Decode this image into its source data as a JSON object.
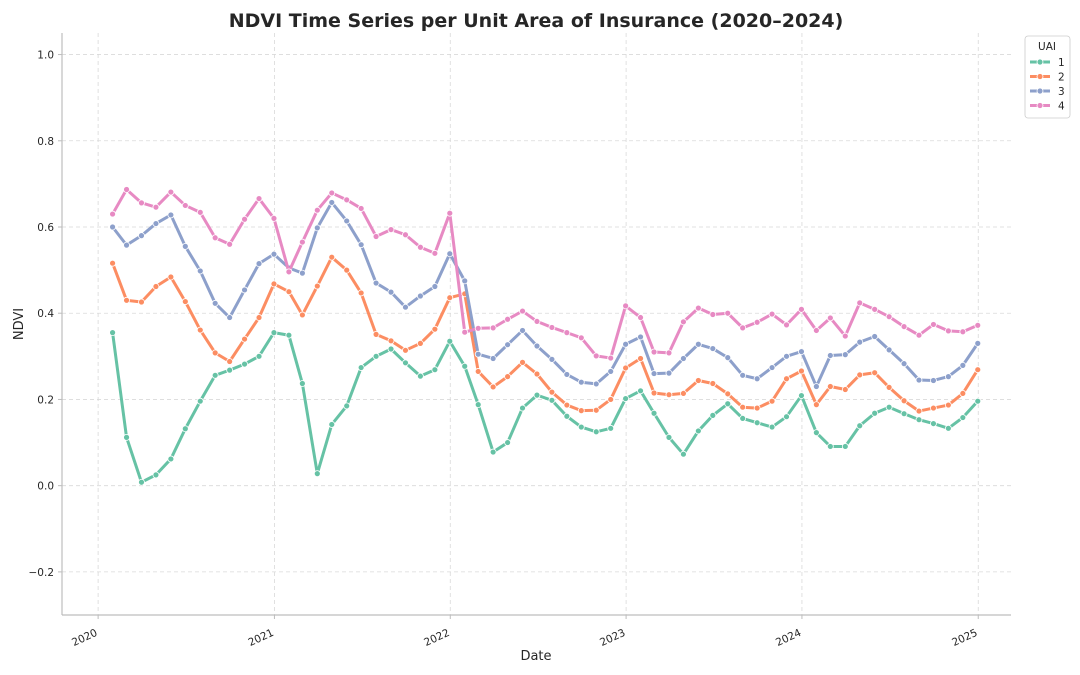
{
  "chart_data": {
    "type": "line",
    "title": "NDVI Time Series per Unit Area of Insurance (2020–2024)",
    "xlabel": "Date",
    "ylabel": "NDVI",
    "xlim": [
      "2019-10-18",
      "2025-03-10"
    ],
    "ylim": [
      -0.3,
      1.05
    ],
    "xticks": [
      "2020-01-01",
      "2021-01-01",
      "2022-01-01",
      "2023-01-01",
      "2024-01-01",
      "2025-01-01"
    ],
    "xtick_labels": [
      "2020",
      "2021",
      "2022",
      "2023",
      "2024",
      "2025"
    ],
    "yticks": [
      -0.2,
      0.0,
      0.2,
      0.4,
      0.6,
      0.8,
      1.0
    ],
    "ytick_labels": [
      "−0.2",
      "0.0",
      "0.2",
      "0.4",
      "0.6",
      "0.8",
      "1.0"
    ],
    "grid": true,
    "legend": {
      "title": "UAI",
      "position": "top-right"
    },
    "x": [
      "2020-01",
      "2020-02",
      "2020-03",
      "2020-04",
      "2020-05",
      "2020-06",
      "2020-07",
      "2020-08",
      "2020-09",
      "2020-10",
      "2020-11",
      "2020-12",
      "2021-01",
      "2021-02",
      "2021-03",
      "2021-04",
      "2021-05",
      "2021-06",
      "2021-07",
      "2021-08",
      "2021-09",
      "2021-10",
      "2021-11",
      "2021-12",
      "2022-01",
      "2022-02",
      "2022-03",
      "2022-04",
      "2022-05",
      "2022-06",
      "2022-07",
      "2022-08",
      "2022-09",
      "2022-10",
      "2022-11",
      "2022-12",
      "2023-01",
      "2023-02",
      "2023-03",
      "2023-04",
      "2023-05",
      "2023-06",
      "2023-07",
      "2023-08",
      "2023-09",
      "2023-10",
      "2023-11",
      "2023-12",
      "2024-01",
      "2024-02",
      "2024-03",
      "2024-04",
      "2024-05",
      "2024-06",
      "2024-07",
      "2024-08",
      "2024-09",
      "2024-10",
      "2024-11",
      "2024-12"
    ],
    "series": [
      {
        "name": "1",
        "color": "#66c2a5",
        "values": [
          0.355,
          0.112,
          0.008,
          0.025,
          0.062,
          0.132,
          0.196,
          0.256,
          0.268,
          0.282,
          0.3,
          0.355,
          0.349,
          0.237,
          0.028,
          0.142,
          0.185,
          0.274,
          0.3,
          0.317,
          0.285,
          0.254,
          0.269,
          0.335,
          0.277,
          0.188,
          0.078,
          0.1,
          0.18,
          0.21,
          0.198,
          0.161,
          0.136,
          0.125,
          0.133,
          0.202,
          0.22,
          0.168,
          0.112,
          0.073,
          0.127,
          0.163,
          0.19,
          0.156,
          0.146,
          0.136,
          0.16,
          0.209,
          0.123,
          0.091,
          0.091,
          0.139,
          0.168,
          0.182,
          0.167,
          0.153,
          0.144,
          0.133,
          0.158,
          0.196
        ]
      },
      {
        "name": "2",
        "color": "#fc8d62",
        "values": [
          0.516,
          0.43,
          0.426,
          0.462,
          0.484,
          0.427,
          0.361,
          0.308,
          0.288,
          0.34,
          0.39,
          0.468,
          0.45,
          0.396,
          0.463,
          0.53,
          0.5,
          0.447,
          0.351,
          0.336,
          0.314,
          0.33,
          0.363,
          0.436,
          0.445,
          0.265,
          0.229,
          0.253,
          0.286,
          0.259,
          0.217,
          0.187,
          0.174,
          0.175,
          0.2,
          0.273,
          0.295,
          0.215,
          0.211,
          0.214,
          0.244,
          0.237,
          0.213,
          0.182,
          0.18,
          0.196,
          0.248,
          0.266,
          0.188,
          0.23,
          0.223,
          0.257,
          0.262,
          0.228,
          0.197,
          0.173,
          0.18,
          0.187,
          0.214,
          0.269
        ]
      },
      {
        "name": "3",
        "color": "#8da0cb",
        "values": [
          0.6,
          0.558,
          0.58,
          0.608,
          0.628,
          0.555,
          0.498,
          0.423,
          0.39,
          0.454,
          0.515,
          0.537,
          0.505,
          0.493,
          0.598,
          0.657,
          0.614,
          0.559,
          0.47,
          0.449,
          0.414,
          0.44,
          0.462,
          0.538,
          0.475,
          0.305,
          0.295,
          0.327,
          0.36,
          0.324,
          0.293,
          0.258,
          0.24,
          0.236,
          0.265,
          0.328,
          0.345,
          0.26,
          0.261,
          0.295,
          0.328,
          0.318,
          0.297,
          0.256,
          0.248,
          0.274,
          0.3,
          0.311,
          0.23,
          0.302,
          0.304,
          0.333,
          0.346,
          0.315,
          0.283,
          0.245,
          0.244,
          0.253,
          0.279,
          0.33
        ]
      },
      {
        "name": "4",
        "color": "#e78ac3",
        "values": [
          0.63,
          0.687,
          0.656,
          0.646,
          0.681,
          0.65,
          0.634,
          0.575,
          0.56,
          0.618,
          0.666,
          0.62,
          0.496,
          0.565,
          0.639,
          0.679,
          0.663,
          0.643,
          0.578,
          0.594,
          0.582,
          0.553,
          0.539,
          0.632,
          0.356,
          0.365,
          0.366,
          0.386,
          0.405,
          0.381,
          0.367,
          0.355,
          0.343,
          0.301,
          0.296,
          0.417,
          0.39,
          0.31,
          0.308,
          0.38,
          0.412,
          0.397,
          0.4,
          0.366,
          0.379,
          0.398,
          0.373,
          0.409,
          0.36,
          0.389,
          0.347,
          0.424,
          0.409,
          0.392,
          0.369,
          0.349,
          0.374,
          0.359,
          0.357,
          0.372
        ]
      }
    ]
  }
}
